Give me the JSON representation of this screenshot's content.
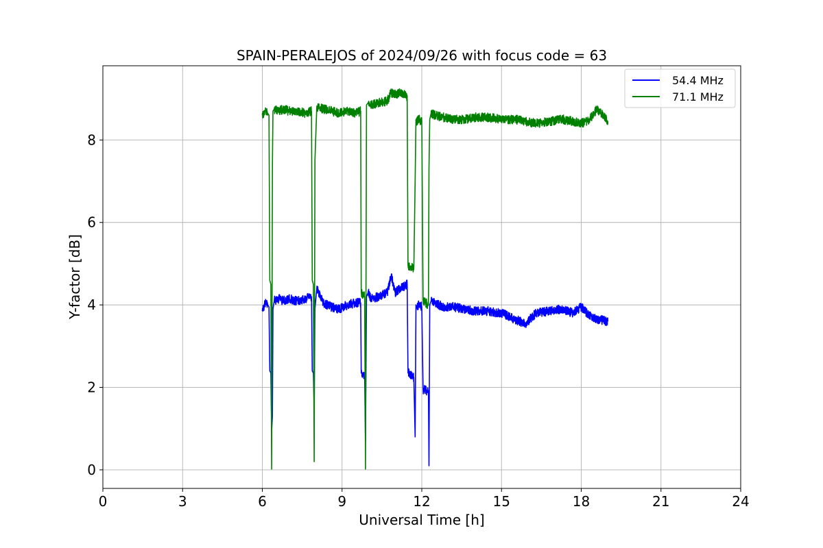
{
  "chart_data": {
    "type": "line",
    "title": "SPAIN-PERALEJOS of 2024/09/26 with focus code = 63",
    "xlabel": "Universal Time [h]",
    "ylabel": "Y-factor [dB]",
    "xlim": [
      0,
      24
    ],
    "ylim": [
      -0.45,
      9.8
    ],
    "x_ticks": [
      0,
      3,
      6,
      9,
      12,
      15,
      18,
      21,
      24
    ],
    "y_ticks": [
      0,
      2,
      4,
      6,
      8
    ],
    "grid": true,
    "legend_position": "top-right",
    "series": [
      {
        "name": "54.4 MHz",
        "color": "#0000ff",
        "x": [
          6.0,
          6.1,
          6.2,
          6.25,
          6.28,
          6.32,
          6.35,
          6.38,
          6.4,
          6.45,
          6.6,
          6.8,
          7.0,
          7.3,
          7.6,
          7.85,
          7.88,
          7.92,
          7.95,
          7.98,
          8.05,
          8.3,
          8.6,
          8.9,
          9.2,
          9.5,
          9.7,
          9.72,
          9.85,
          9.88,
          9.92,
          9.98,
          10.1,
          10.4,
          10.7,
          10.85,
          11.0,
          11.2,
          11.45,
          11.48,
          11.7,
          11.75,
          11.78,
          11.8,
          11.9,
          12.0,
          12.05,
          12.25,
          12.27,
          12.3,
          12.35,
          12.5,
          12.8,
          13.2,
          13.6,
          14.0,
          14.5,
          15.0,
          15.5,
          15.9,
          16.3,
          16.8,
          17.3,
          17.7,
          18.0,
          18.3,
          18.6,
          19.0
        ],
        "y": [
          3.85,
          4.05,
          4.0,
          3.95,
          2.4,
          2.35,
          0.95,
          1.3,
          3.9,
          4.1,
          4.15,
          4.1,
          4.15,
          4.1,
          4.15,
          4.2,
          2.4,
          2.35,
          1.5,
          3.9,
          4.4,
          4.05,
          3.95,
          3.9,
          4.0,
          4.05,
          4.05,
          2.35,
          2.25,
          0.7,
          4.2,
          4.3,
          4.15,
          4.2,
          4.3,
          4.7,
          4.3,
          4.4,
          4.5,
          2.35,
          2.25,
          0.8,
          4.0,
          3.95,
          4.0,
          3.95,
          1.95,
          1.9,
          0.1,
          4.0,
          4.1,
          4.05,
          3.95,
          3.95,
          3.9,
          3.85,
          3.85,
          3.8,
          3.65,
          3.55,
          3.8,
          3.85,
          3.9,
          3.8,
          3.95,
          3.75,
          3.65,
          3.6
        ]
      },
      {
        "name": "71.1 MHz",
        "color": "#008000",
        "x": [
          6.0,
          6.1,
          6.2,
          6.25,
          6.28,
          6.32,
          6.35,
          6.38,
          6.4,
          6.45,
          6.6,
          6.8,
          7.0,
          7.3,
          7.6,
          7.85,
          7.88,
          7.92,
          7.95,
          7.98,
          8.05,
          8.3,
          8.6,
          8.9,
          9.2,
          9.5,
          9.7,
          9.72,
          9.85,
          9.88,
          9.92,
          9.98,
          10.1,
          10.4,
          10.7,
          10.85,
          11.0,
          11.2,
          11.45,
          11.48,
          11.7,
          11.75,
          11.78,
          11.8,
          11.9,
          12.0,
          12.05,
          12.25,
          12.27,
          12.3,
          12.35,
          12.5,
          12.8,
          13.2,
          13.6,
          14.0,
          14.5,
          15.0,
          15.5,
          15.9,
          16.3,
          16.8,
          17.3,
          17.7,
          18.0,
          18.3,
          18.6,
          19.0
        ],
        "y": [
          8.6,
          8.7,
          8.65,
          8.6,
          4.6,
          4.5,
          0.02,
          7.4,
          8.7,
          8.75,
          8.7,
          8.75,
          8.7,
          8.7,
          8.65,
          8.7,
          4.6,
          4.5,
          0.2,
          7.5,
          8.8,
          8.75,
          8.7,
          8.65,
          8.7,
          8.65,
          8.7,
          4.3,
          4.2,
          0.02,
          8.85,
          8.9,
          8.85,
          8.9,
          8.95,
          9.15,
          9.1,
          9.15,
          9.05,
          4.95,
          4.9,
          7.0,
          8.5,
          8.45,
          8.5,
          8.45,
          4.1,
          4.0,
          7.3,
          8.5,
          8.65,
          8.6,
          8.55,
          8.5,
          8.5,
          8.55,
          8.55,
          8.5,
          8.5,
          8.45,
          8.4,
          8.45,
          8.5,
          8.45,
          8.4,
          8.5,
          8.75,
          8.45
        ]
      }
    ]
  }
}
